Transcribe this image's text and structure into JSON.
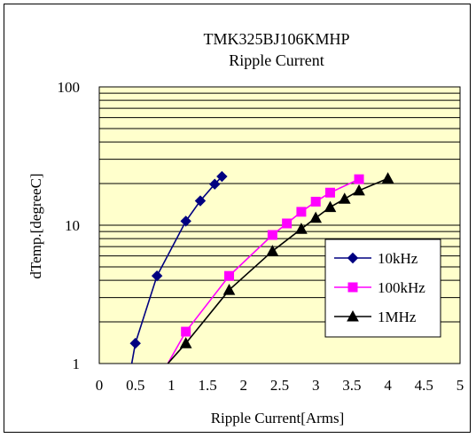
{
  "chart_data": {
    "type": "line",
    "title": "TMK325BJ106KMHP",
    "subtitle": "Ripple Current",
    "xlabel": "Ripple Current[Arms]",
    "ylabel": "dTemp.[degreeC]",
    "xlim": [
      0,
      5
    ],
    "ylim": [
      1,
      100
    ],
    "yscale": "log",
    "x_ticks": [
      "0",
      "0.5",
      "1",
      "1.5",
      "2",
      "2.5",
      "3",
      "3.5",
      "4",
      "4.5",
      "5"
    ],
    "y_ticks": [
      "1",
      "10",
      "100"
    ],
    "grid": true,
    "plot_background": "#ffffcc",
    "legend_position": "right",
    "series": [
      {
        "name": "10kHz",
        "color": "#000080",
        "marker": "diamond",
        "points": [
          [
            0.45,
            1.0
          ],
          [
            0.5,
            1.4
          ],
          [
            0.8,
            4.3
          ],
          [
            1.2,
            10.7
          ],
          [
            1.4,
            15.0
          ],
          [
            1.6,
            19.8
          ],
          [
            1.7,
            22.5
          ]
        ]
      },
      {
        "name": "100kHz",
        "color": "#ff00ff",
        "marker": "square",
        "points": [
          [
            0.95,
            1.0
          ],
          [
            1.2,
            1.7
          ],
          [
            1.8,
            4.3
          ],
          [
            2.4,
            8.5
          ],
          [
            2.6,
            10.3
          ],
          [
            2.8,
            12.5
          ],
          [
            3.0,
            14.8
          ],
          [
            3.2,
            17.2
          ],
          [
            3.6,
            21.5
          ]
        ]
      },
      {
        "name": "1MHz",
        "color": "#000000",
        "marker": "triangle",
        "points": [
          [
            0.95,
            1.0
          ],
          [
            1.2,
            1.4
          ],
          [
            1.8,
            3.4
          ],
          [
            2.4,
            6.5
          ],
          [
            2.8,
            9.4
          ],
          [
            3.0,
            11.3
          ],
          [
            3.2,
            13.5
          ],
          [
            3.4,
            15.5
          ],
          [
            3.6,
            17.8
          ],
          [
            4.0,
            21.8
          ]
        ]
      }
    ]
  }
}
